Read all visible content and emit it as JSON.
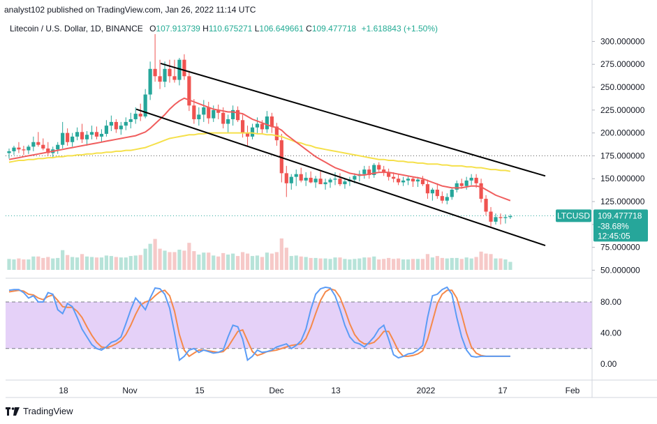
{
  "publisher": "analyst102 published on TradingView.com, Jan 26, 2022 11:14 UTC",
  "legend": {
    "symbol": "Litecoin / U.S. Dollar, 1D, BINANCE",
    "open_label": "O",
    "open": "107.913739",
    "high_label": "H",
    "high": "110.675271",
    "low_label": "L",
    "low": "106.649661",
    "close_label": "C",
    "close": "109.477718",
    "change": "+1.618843 (+1.50%)"
  },
  "price_badges": {
    "ticker": "LTCUSD",
    "last_price": "109.477718",
    "pct": "-38.68%",
    "countdown": "12:45:05"
  },
  "footer": {
    "brand": "TradingView"
  },
  "colors": {
    "bull": "#26a69a",
    "bear": "#ef5350",
    "ma_fast": "#f05d5d",
    "ma_slow": "#f5e04a",
    "channel": "#000000",
    "stoch_k": "#5b9cf6",
    "stoch_d": "#f5894a",
    "stoch_band": "#e1c9f7"
  },
  "chart_data": {
    "type": "candlestick",
    "price_axis": {
      "ticks": [
        "300.000000",
        "275.000000",
        "250.000000",
        "225.000000",
        "200.000000",
        "175.000000",
        "150.000000",
        "125.000000",
        "100.000000",
        "75.000000",
        "50.000000"
      ],
      "ylim": [
        45,
        311
      ]
    },
    "x_axis": {
      "ticks": [
        "18",
        "Nov",
        "15",
        "Dec",
        "13",
        "2022",
        "17",
        "Feb"
      ]
    },
    "candles": [
      [
        178,
        183,
        172,
        180
      ],
      [
        180,
        186,
        176,
        184
      ],
      [
        184,
        190,
        178,
        182
      ],
      [
        182,
        186,
        176,
        181
      ],
      [
        181,
        187,
        177,
        185
      ],
      [
        185,
        196,
        180,
        190
      ],
      [
        190,
        201,
        185,
        187
      ],
      [
        187,
        194,
        181,
        183
      ],
      [
        183,
        190,
        175,
        178
      ],
      [
        178,
        185,
        173,
        182
      ],
      [
        182,
        190,
        177,
        187
      ],
      [
        187,
        212,
        183,
        200
      ],
      [
        200,
        205,
        186,
        190
      ],
      [
        190,
        200,
        185,
        196
      ],
      [
        196,
        206,
        192,
        201
      ],
      [
        201,
        210,
        189,
        193
      ],
      [
        193,
        202,
        186,
        198
      ],
      [
        198,
        208,
        193,
        201
      ],
      [
        201,
        207,
        193,
        196
      ],
      [
        196,
        204,
        190,
        199
      ],
      [
        199,
        214,
        196,
        208
      ],
      [
        208,
        219,
        202,
        212
      ],
      [
        212,
        215,
        200,
        204
      ],
      [
        204,
        212,
        198,
        208
      ],
      [
        208,
        217,
        203,
        212
      ],
      [
        212,
        222,
        205,
        215
      ],
      [
        215,
        228,
        210,
        221
      ],
      [
        221,
        232,
        213,
        218
      ],
      [
        218,
        248,
        216,
        242
      ],
      [
        242,
        278,
        236,
        270
      ],
      [
        270,
        308,
        256,
        262
      ],
      [
        262,
        280,
        248,
        256
      ],
      [
        256,
        278,
        250,
        270
      ],
      [
        270,
        280,
        255,
        262
      ],
      [
        262,
        280,
        255,
        258
      ],
      [
        258,
        282,
        252,
        280
      ],
      [
        280,
        286,
        258,
        262
      ],
      [
        262,
        268,
        224,
        230
      ],
      [
        230,
        237,
        210,
        215
      ],
      [
        215,
        228,
        208,
        220
      ],
      [
        220,
        236,
        212,
        228
      ],
      [
        228,
        234,
        210,
        216
      ],
      [
        216,
        230,
        212,
        225
      ],
      [
        225,
        231,
        215,
        222
      ],
      [
        222,
        228,
        205,
        210
      ],
      [
        210,
        220,
        200,
        215
      ],
      [
        215,
        230,
        208,
        225
      ],
      [
        225,
        229,
        212,
        214
      ],
      [
        214,
        220,
        195,
        200
      ],
      [
        200,
        208,
        186,
        196
      ],
      [
        196,
        210,
        193,
        206
      ],
      [
        206,
        217,
        199,
        210
      ],
      [
        210,
        214,
        199,
        204
      ],
      [
        204,
        224,
        200,
        218
      ],
      [
        218,
        222,
        200,
        207
      ],
      [
        207,
        211,
        186,
        192
      ],
      [
        192,
        199,
        146,
        156
      ],
      [
        156,
        164,
        130,
        145
      ],
      [
        145,
        155,
        138,
        152
      ],
      [
        152,
        160,
        142,
        155
      ],
      [
        155,
        162,
        146,
        148
      ],
      [
        148,
        157,
        142,
        151
      ],
      [
        151,
        158,
        145,
        146
      ],
      [
        146,
        153,
        140,
        150
      ],
      [
        150,
        158,
        146,
        144
      ],
      [
        144,
        150,
        138,
        146
      ],
      [
        146,
        151,
        140,
        149
      ],
      [
        149,
        157,
        143,
        150
      ],
      [
        150,
        156,
        142,
        144
      ],
      [
        144,
        150,
        139,
        147
      ],
      [
        147,
        152,
        142,
        149
      ],
      [
        149,
        156,
        145,
        153
      ],
      [
        153,
        159,
        147,
        155
      ],
      [
        155,
        164,
        150,
        160
      ],
      [
        160,
        164,
        150,
        154
      ],
      [
        154,
        167,
        151,
        165
      ],
      [
        165,
        168,
        158,
        160
      ],
      [
        160,
        164,
        153,
        157
      ],
      [
        157,
        161,
        148,
        152
      ],
      [
        152,
        157,
        146,
        150
      ],
      [
        150,
        155,
        143,
        146
      ],
      [
        146,
        152,
        142,
        148
      ],
      [
        148,
        153,
        143,
        150
      ],
      [
        150,
        152,
        141,
        147
      ],
      [
        147,
        152,
        141,
        149
      ],
      [
        149,
        153,
        142,
        144
      ],
      [
        144,
        149,
        128,
        134
      ],
      [
        134,
        140,
        126,
        138
      ],
      [
        138,
        145,
        128,
        131
      ],
      [
        131,
        136,
        123,
        126
      ],
      [
        126,
        134,
        122,
        130
      ],
      [
        130,
        140,
        127,
        138
      ],
      [
        138,
        148,
        135,
        145
      ],
      [
        145,
        150,
        139,
        142
      ],
      [
        142,
        152,
        138,
        148
      ],
      [
        148,
        155,
        143,
        151
      ],
      [
        151,
        155,
        140,
        145
      ],
      [
        145,
        150,
        124,
        128
      ],
      [
        128,
        132,
        110,
        114
      ],
      [
        114,
        119,
        98,
        103
      ],
      [
        103,
        112,
        100,
        108
      ],
      [
        108,
        112,
        100,
        107
      ],
      [
        107,
        111,
        101,
        108
      ],
      [
        108,
        111,
        106,
        109
      ]
    ],
    "ma_fast": [
      171,
      172,
      173,
      174,
      175,
      176,
      177,
      178,
      179,
      180,
      181,
      182,
      183,
      184,
      185,
      186,
      187,
      188,
      189,
      190,
      191,
      192,
      193,
      194,
      195,
      196,
      197,
      199,
      201,
      205,
      210,
      215,
      220,
      226,
      231,
      235,
      238,
      236,
      234,
      232,
      230,
      228,
      226,
      225,
      224,
      223,
      223,
      222,
      221,
      218,
      215,
      213,
      211,
      209,
      207,
      206,
      203,
      198,
      194,
      190,
      186,
      182,
      178,
      174,
      171,
      168,
      165,
      162,
      160,
      158,
      156,
      155,
      154,
      154,
      155,
      156,
      157,
      157,
      157,
      156,
      155,
      154,
      153,
      152,
      151,
      150,
      148,
      146,
      144,
      142,
      141,
      140,
      140,
      140,
      141,
      142,
      142,
      141,
      138,
      135,
      132,
      130,
      128,
      126
    ],
    "ma_slow": [
      168,
      169,
      170,
      170,
      171,
      171,
      172,
      172,
      173,
      173,
      174,
      174,
      175,
      175,
      176,
      176,
      177,
      177,
      178,
      178,
      179,
      179,
      180,
      180,
      181,
      181,
      182,
      183,
      184,
      186,
      188,
      190,
      192,
      194,
      195,
      196,
      197,
      198,
      198,
      199,
      199,
      200,
      200,
      200,
      200,
      200,
      200,
      200,
      200,
      200,
      200,
      199,
      199,
      198,
      198,
      197,
      196,
      194,
      192,
      190,
      189,
      187,
      186,
      184,
      183,
      182,
      181,
      180,
      179,
      178,
      177,
      176,
      175,
      174,
      173,
      172,
      171,
      171,
      170,
      170,
      169,
      169,
      168,
      168,
      167,
      167,
      166,
      166,
      166,
      165,
      165,
      164,
      164,
      164,
      163,
      163,
      162,
      162,
      161,
      160,
      160,
      159,
      159,
      158
    ],
    "channel_upper": {
      "from": [
        223,
        276
      ],
      "to": [
        1,
        153
      ]
    },
    "channel_lower": {
      "from": [
        184,
        226
      ],
      "to": [
        1,
        77
      ]
    },
    "stochastic": {
      "ticks": [
        "80.00",
        "40.00",
        "0.00"
      ],
      "overbought": 80,
      "oversold": 20,
      "k": [
        95,
        96,
        96,
        92,
        85,
        88,
        80,
        80,
        92,
        90,
        70,
        65,
        78,
        74,
        60,
        45,
        35,
        25,
        20,
        18,
        22,
        28,
        30,
        35,
        52,
        70,
        85,
        78,
        70,
        85,
        98,
        97,
        90,
        72,
        40,
        5,
        10,
        18,
        20,
        15,
        18,
        16,
        14,
        15,
        18,
        35,
        50,
        48,
        32,
        5,
        10,
        18,
        15,
        16,
        18,
        22,
        24,
        26,
        20,
        24,
        30,
        45,
        70,
        90,
        97,
        99,
        98,
        88,
        70,
        50,
        35,
        28,
        26,
        22,
        28,
        35,
        45,
        50,
        32,
        12,
        8,
        10,
        13,
        14,
        18,
        24,
        60,
        88,
        90,
        96,
        99,
        90,
        60,
        35,
        18,
        10,
        9,
        10,
        10,
        10,
        10,
        10,
        10,
        10
      ],
      "d": [
        93,
        94,
        95,
        94,
        90,
        89,
        85,
        83,
        87,
        89,
        82,
        74,
        73,
        73,
        68,
        60,
        48,
        37,
        28,
        22,
        21,
        23,
        26,
        30,
        38,
        50,
        64,
        76,
        80,
        82,
        88,
        93,
        95,
        88,
        68,
        38,
        18,
        10,
        14,
        18,
        18,
        17,
        16,
        15,
        16,
        22,
        32,
        42,
        44,
        30,
        16,
        11,
        13,
        16,
        17,
        18,
        20,
        22,
        24,
        25,
        26,
        33,
        47,
        65,
        82,
        93,
        97,
        95,
        86,
        70,
        52,
        38,
        30,
        26,
        26,
        28,
        34,
        42,
        42,
        30,
        17,
        10,
        10,
        11,
        13,
        17,
        32,
        55,
        78,
        90,
        95,
        95,
        85,
        64,
        40,
        22,
        14,
        11,
        10,
        10,
        10,
        10,
        10,
        10
      ]
    }
  }
}
